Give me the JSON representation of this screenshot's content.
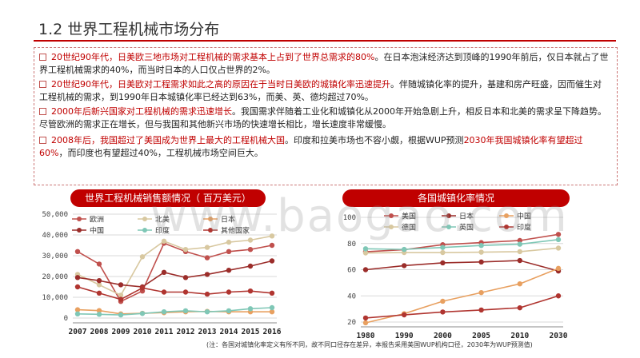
{
  "title": "1.2 世界工程机械市场分布",
  "bullets": [
    {
      "segments": [
        {
          "text": "20世纪90年代，日美欧三地市场对工程机械的需求基本上占到了世界总需求的80%",
          "hl": true
        },
        {
          "text": "。在日本泡沫经济达到顶峰的1990年前后，仅日本就占了世界工程机械需求的40%，而当时日本的人口仅占世界的2%。",
          "hl": false
        }
      ]
    },
    {
      "segments": [
        {
          "text": "20世纪90年代，日美欧对工程需求如此之高的原因在于当时日美欧的城镇化率迅速提升",
          "hl": true
        },
        {
          "text": "。伴随城镇化率的提升，基建和房产旺盛，因而催生对工程机械的需求，到1990年日本城镇化率已经达到63%，而美、英、德均超过70%。",
          "hl": false
        }
      ]
    },
    {
      "segments": [
        {
          "text": "2000年后新兴国家对工程机械的需求迅速增长",
          "hl": true
        },
        {
          "text": "。我国需求伴随着工业化和城镇化从2000年开始急剧上升，相反日本和北美的需求呈下降趋势。尽管欧洲的需求正在增长，但与我国和其他新兴市场的快速增长相比，增长速度非常缓慢。",
          "hl": false
        }
      ]
    },
    {
      "segments": [
        {
          "text": "2008年后，我国超过了美国成为世界上最大的工程机械大国",
          "hl": true
        },
        {
          "text": "。印度和拉美市场也不容小觑，根据WUP预测",
          "hl": false
        },
        {
          "text": "2030年我国城镇化率有望超过60%",
          "hl": true
        },
        {
          "text": "，而印度也有望超过40%，工程机械市场空间巨大。",
          "hl": false
        }
      ]
    }
  ],
  "watermark": "www.baogao.com",
  "footnote": "(注：各国对城镇化率定义有所不同，故不同口径存在差异，本报告采用美国WUP机构口径，2030年为WUP预测值)",
  "chart_data": [
    {
      "type": "line",
      "title": "世界工程机械销售额情况（  百万美元）",
      "x": [
        "2007",
        "2008",
        "2009",
        "2010",
        "2011",
        "2012",
        "2013",
        "2014",
        "2015",
        "2016"
      ],
      "ylim": [
        0,
        50000
      ],
      "yticks": [
        "0",
        "10,000",
        "20,000",
        "30,000",
        "40,000",
        "50,000"
      ],
      "legend_position": "top",
      "series": [
        {
          "name": "欧洲",
          "color": "#c0504d",
          "values": [
            32000,
            26000,
            8000,
            13000,
            36000,
            32000,
            29000,
            32000,
            33000,
            35000
          ]
        },
        {
          "name": "北美",
          "color": "#d8c8a0",
          "values": [
            21000,
            16000,
            11000,
            29500,
            37000,
            33000,
            34000,
            36500,
            37500,
            39500
          ]
        },
        {
          "name": "日本",
          "color": "#e8a060",
          "values": [
            4000,
            3600,
            2000,
            2300,
            2600,
            3000,
            3200,
            3000,
            3000,
            3000
          ]
        },
        {
          "name": "中国",
          "color": "#9b2d2a",
          "values": [
            19500,
            18000,
            16000,
            15000,
            22000,
            19500,
            21000,
            23000,
            25000,
            27500
          ]
        },
        {
          "name": "印度",
          "color": "#7fc7b6",
          "values": [
            2000,
            1800,
            1500,
            2200,
            3000,
            3500,
            3000,
            3500,
            4500,
            5000
          ]
        },
        {
          "name": "其他国家",
          "color": "#b03530",
          "values": [
            15000,
            12000,
            9000,
            14500,
            12500,
            12500,
            11500,
            12500,
            13000,
            12000
          ]
        }
      ]
    },
    {
      "type": "line",
      "title": "各国城镇化率情况",
      "x": [
        "1980",
        "1990",
        "2000",
        "2005",
        "2010",
        "2030"
      ],
      "ylim": [
        20,
        100
      ],
      "yticks": [
        "20",
        "40",
        "60",
        "80",
        "100"
      ],
      "legend_position": "top",
      "series": [
        {
          "name": "美国",
          "color": "#c0504d",
          "values": [
            73.7,
            75.3,
            79.1,
            80.7,
            82.3,
            87.0
          ]
        },
        {
          "name": "日本",
          "color": "#9b2d2a",
          "values": [
            60.0,
            63.1,
            65.2,
            65.9,
            67.0,
            59.0
          ]
        },
        {
          "name": "中国",
          "color": "#e8a060",
          "values": [
            19.4,
            26.4,
            35.9,
            42.5,
            49.2,
            61.0
          ]
        },
        {
          "name": "德国",
          "color": "#d8c8a0",
          "values": [
            72.8,
            73.1,
            73.1,
            73.4,
            73.8,
            76.5
          ]
        },
        {
          "name": "英国",
          "color": "#7fc7b6",
          "values": [
            76.0,
            75.5,
            77.0,
            78.5,
            79.5,
            83.0
          ]
        },
        {
          "name": "印度",
          "color": "#b03530",
          "values": [
            23.1,
            25.5,
            27.7,
            29.2,
            30.9,
            40.0
          ]
        }
      ]
    }
  ]
}
